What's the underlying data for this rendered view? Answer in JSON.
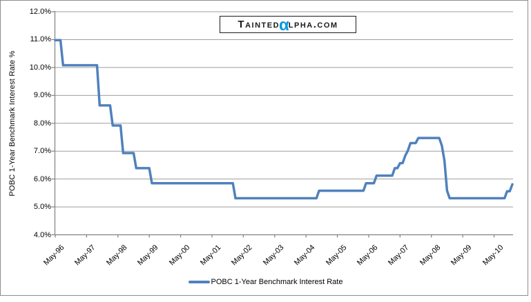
{
  "page": {
    "background": "#FFFFFF",
    "border_color": "#8C8C8C"
  },
  "logo": {
    "prefix": "Tainted",
    "alpha": "α",
    "suffix": "lpha.com",
    "full_text": "TAINTEDαLPHA.COM",
    "alpha_color": "#0999D8",
    "text_color": "#1A1A1A"
  },
  "colors": {
    "gridline": "#9E9E9E",
    "axis": "#808080",
    "tick_text": "#000000",
    "line": "#4F81BD"
  },
  "chart_data": {
    "type": "line",
    "title": "",
    "xlabel": "",
    "ylabel": "POBC 1-Year Benchmark Interest Rate %",
    "legend_label": "POBC 1-Year Benchmark Interest Rate",
    "legend_position": "bottom-center",
    "grid": "horizontal",
    "ylim": [
      4.0,
      12.0
    ],
    "y_tick_step": 1.0,
    "y_tick_values": [
      12,
      11,
      10,
      9,
      8,
      7,
      6,
      5,
      4
    ],
    "y_tick_labels": [
      "12.0%",
      "11.0%",
      "10.0%",
      "9.0%",
      "8.0%",
      "7.0%",
      "6.0%",
      "5.0%",
      "4.0%"
    ],
    "x_tick_labels": [
      "May-96",
      "May-97",
      "May-98",
      "May-99",
      "May-00",
      "May-01",
      "May-02",
      "May-03",
      "May-04",
      "May-05",
      "May-06",
      "May-07",
      "May-08",
      "May-09",
      "May-10"
    ],
    "x_start_month": "May-1996",
    "x_end_month": "Dec-2010",
    "months_per_point": 1,
    "line_color": "#4F81BD",
    "rate_steps": [
      [
        "May-96",
        10.98
      ],
      [
        "Aug-96",
        10.08
      ],
      [
        "Oct-97",
        8.64
      ],
      [
        "Mar-98",
        7.92
      ],
      [
        "Jul-98",
        6.93
      ],
      [
        "Dec-98",
        6.39
      ],
      [
        "Jun-99",
        5.85
      ],
      [
        "Feb-02",
        5.31
      ],
      [
        "Oct-04",
        5.58
      ],
      [
        "Apr-06",
        5.85
      ],
      [
        "Aug-06",
        6.12
      ],
      [
        "Mar-07",
        6.39
      ],
      [
        "May-07",
        6.57
      ],
      [
        "Jul-07",
        6.84
      ],
      [
        "Aug-07",
        7.02
      ],
      [
        "Sep-07",
        7.29
      ],
      [
        "Dec-07",
        7.47
      ],
      [
        "Sep-08",
        7.2
      ],
      [
        "Oct-08",
        6.66
      ],
      [
        "Nov-08",
        5.58
      ],
      [
        "Dec-08",
        5.31
      ],
      [
        "Oct-10",
        5.56
      ],
      [
        "Dec-10",
        5.81
      ]
    ],
    "monthly_values": [
      10.98,
      10.98,
      10.98,
      10.08,
      10.08,
      10.08,
      10.08,
      10.08,
      10.08,
      10.08,
      10.08,
      10.08,
      10.08,
      10.08,
      10.08,
      10.08,
      10.08,
      8.64,
      8.64,
      8.64,
      8.64,
      8.64,
      7.92,
      7.92,
      7.92,
      7.92,
      6.93,
      6.93,
      6.93,
      6.93,
      6.93,
      6.39,
      6.39,
      6.39,
      6.39,
      6.39,
      6.39,
      5.85,
      5.85,
      5.85,
      5.85,
      5.85,
      5.85,
      5.85,
      5.85,
      5.85,
      5.85,
      5.85,
      5.85,
      5.85,
      5.85,
      5.85,
      5.85,
      5.85,
      5.85,
      5.85,
      5.85,
      5.85,
      5.85,
      5.85,
      5.85,
      5.85,
      5.85,
      5.85,
      5.85,
      5.85,
      5.85,
      5.85,
      5.85,
      5.31,
      5.31,
      5.31,
      5.31,
      5.31,
      5.31,
      5.31,
      5.31,
      5.31,
      5.31,
      5.31,
      5.31,
      5.31,
      5.31,
      5.31,
      5.31,
      5.31,
      5.31,
      5.31,
      5.31,
      5.31,
      5.31,
      5.31,
      5.31,
      5.31,
      5.31,
      5.31,
      5.31,
      5.31,
      5.31,
      5.31,
      5.31,
      5.58,
      5.58,
      5.58,
      5.58,
      5.58,
      5.58,
      5.58,
      5.58,
      5.58,
      5.58,
      5.58,
      5.58,
      5.58,
      5.58,
      5.58,
      5.58,
      5.58,
      5.58,
      5.85,
      5.85,
      5.85,
      5.85,
      6.12,
      6.12,
      6.12,
      6.12,
      6.12,
      6.12,
      6.12,
      6.39,
      6.39,
      6.57,
      6.57,
      6.84,
      7.02,
      7.29,
      7.29,
      7.29,
      7.47,
      7.47,
      7.47,
      7.47,
      7.47,
      7.47,
      7.47,
      7.47,
      7.47,
      7.2,
      6.66,
      5.58,
      5.31,
      5.31,
      5.31,
      5.31,
      5.31,
      5.31,
      5.31,
      5.31,
      5.31,
      5.31,
      5.31,
      5.31,
      5.31,
      5.31,
      5.31,
      5.31,
      5.31,
      5.31,
      5.31,
      5.31,
      5.31,
      5.31,
      5.56,
      5.56,
      5.81
    ]
  }
}
